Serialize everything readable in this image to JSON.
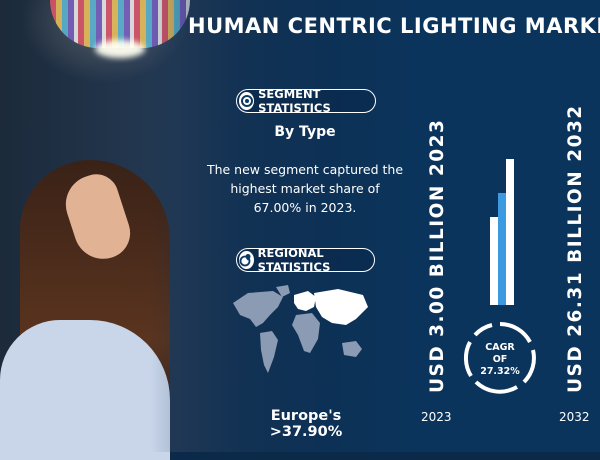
{
  "title": "HUMAN CENTRIC LIGHTING MARKET",
  "segment": {
    "pill_label": "SEGMENT STATISTICS",
    "subheading": "By Type",
    "text": "The new segment captured the highest market share of 67.00% in 2023."
  },
  "regional": {
    "pill_label": "REGIONAL STATISTICS",
    "caption": "Europe's >37.90%"
  },
  "market": {
    "value_2023": "USD 3.00 BILLION 2023",
    "value_2032": "USD 26.31 BILLION 2032",
    "year_2023": "2023",
    "year_2032": "2032"
  },
  "cagr": {
    "line1": "CAGR",
    "line2": "OF",
    "line3": "27.32%"
  },
  "colors": {
    "background": "#0b3a66",
    "accent": "#3c9be0",
    "text": "#ffffff"
  },
  "icons": [
    "gear-chart-icon",
    "globe-pin-icon"
  ]
}
